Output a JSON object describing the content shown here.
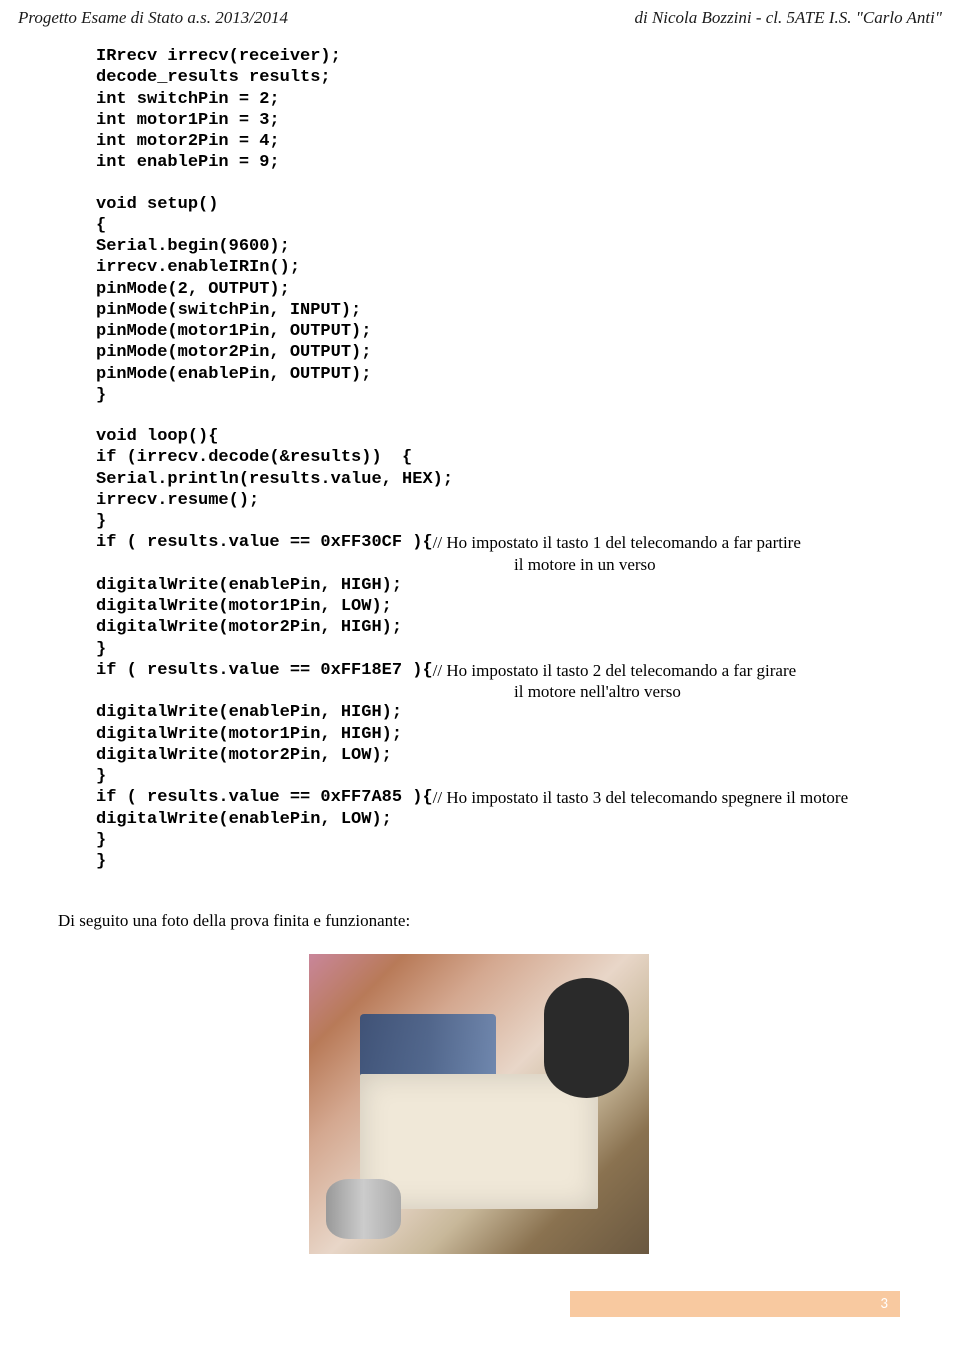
{
  "header": {
    "left": "Progetto Esame di Stato a.s. 2013/2014",
    "right": "di Nicola Bozzini - cl. 5ATE I.S. \"Carlo Anti\""
  },
  "code": {
    "block1": "IRrecv irrecv(receiver);\ndecode_results results;\nint switchPin = 2;\nint motor1Pin = 3;\nint motor2Pin = 4;\nint enablePin = 9;",
    "block2": "void setup()\n{\nSerial.begin(9600);\nirrecv.enableIRIn();\npinMode(2, OUTPUT);\npinMode(switchPin, INPUT);\npinMode(motor1Pin, OUTPUT);\npinMode(motor2Pin, OUTPUT);\npinMode(enablePin, OUTPUT);\n}",
    "block3": "void loop(){\nif (irrecv.decode(&results))  {\nSerial.println(results.value, HEX);\nirrecv.resume();\n}",
    "if1_code": "if ( results.value == 0xFF30CF ){",
    "if1_comment_a": "     // Ho impostato il tasto 1 del telecomando a far partire",
    "if1_comment_b": "il motore in un verso",
    "block4": "digitalWrite(enablePin, HIGH);\ndigitalWrite(motor1Pin, LOW);\ndigitalWrite(motor2Pin, HIGH);\n}",
    "if2_code": "if ( results.value == 0xFF18E7 ){",
    "if2_comment_a": "     // Ho impostato il tasto 2 del telecomando a far girare",
    "if2_comment_b": "il motore nell'altro verso",
    "block5": "digitalWrite(enablePin, HIGH);\ndigitalWrite(motor1Pin, HIGH);\ndigitalWrite(motor2Pin, LOW);\n}",
    "if3_code": "if ( results.value == 0xFF7A85 ){",
    "if3_comment": " // Ho impostato il tasto 3 del telecomando spegnere il motore",
    "block6": "digitalWrite(enablePin, LOW);\n}\n}"
  },
  "closing": "Di seguito una foto della prova finita e funzionante:",
  "footer": {
    "page": "3",
    "bg_color": "#f8c9a0"
  }
}
